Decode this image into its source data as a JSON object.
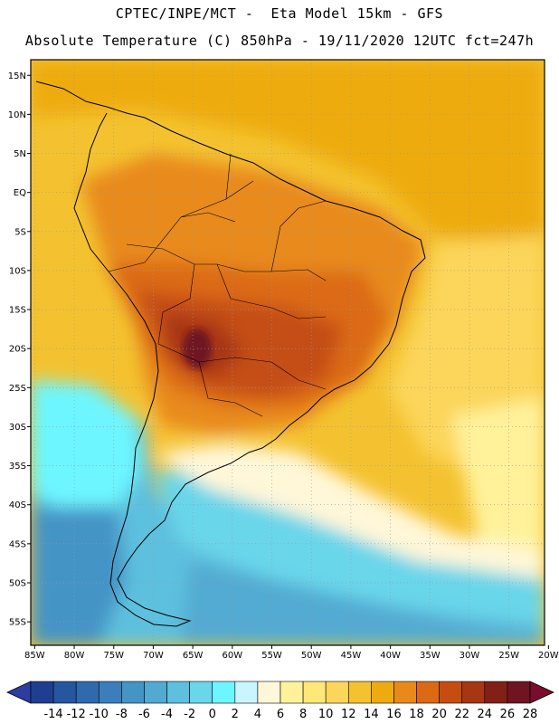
{
  "header": {
    "line1": "CPTEC/INPE/MCT -  Eta Model 15km - GFS",
    "line2": "Absolute Temperature (C) 850hPa - 19/11/2020 12UTC fct=247h"
  },
  "map": {
    "lat_labels": [
      "15N",
      "10N",
      "5N",
      "EQ",
      "5S",
      "10S",
      "15S",
      "20S",
      "25S",
      "30S",
      "35S",
      "40S",
      "45S",
      "50S",
      "55S"
    ],
    "lon_labels": [
      "85W",
      "80W",
      "75W",
      "70W",
      "65W",
      "60W",
      "55W",
      "50W",
      "45W",
      "40W",
      "35W",
      "30W",
      "25W",
      "20W"
    ],
    "lat_range": [
      17,
      -58
    ],
    "lon_range": [
      -85.5,
      -20.5
    ]
  },
  "colorbar": {
    "labels": [
      "-14",
      "-12",
      "-10",
      "-8",
      "-6",
      "-4",
      "-2",
      "0",
      "2",
      "4",
      "6",
      "8",
      "10",
      "12",
      "14",
      "16",
      "18",
      "20",
      "22",
      "24",
      "26",
      "28"
    ],
    "colors": [
      "#1e3f91",
      "#2656a0",
      "#2f6aaf",
      "#3a7fbc",
      "#4594c6",
      "#52aad2",
      "#5dc0de",
      "#69d6ea",
      "#6df6ff",
      "#c8f5ff",
      "#fff7d8",
      "#fff29b",
      "#ffe877",
      "#fcd65a",
      "#f4c230",
      "#eeab11",
      "#e88a1a",
      "#dc6a14",
      "#c54d12",
      "#a63614",
      "#822017",
      "#6f1420"
    ],
    "low_color": "#2c3d9d",
    "high_color": "#7a0d2c"
  }
}
